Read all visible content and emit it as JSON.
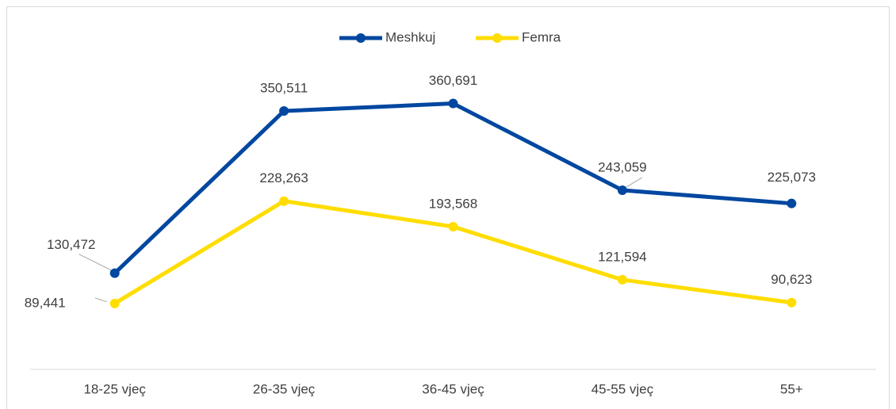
{
  "chart_data": {
    "type": "line",
    "categories": [
      "18-25 vjeç",
      "26-35 vjeç",
      "36-45 vjeç",
      "45-55 vjeç",
      "55+"
    ],
    "series": [
      {
        "name": "Meshkuj",
        "color": "#0047a0",
        "values": [
          130472,
          350511,
          360691,
          243059,
          225073
        ],
        "value_labels": [
          "130,472",
          "350,511",
          "360,691",
          "243,059",
          "225,073"
        ]
      },
      {
        "name": "Femra",
        "color": "#ffdd00",
        "values": [
          89441,
          228263,
          193568,
          121594,
          90623
        ],
        "value_labels": [
          "89,441",
          "228,263",
          "193,568",
          "121,594",
          "90,623"
        ]
      }
    ],
    "ylim": [
      0,
      400000
    ],
    "legend": "top"
  }
}
